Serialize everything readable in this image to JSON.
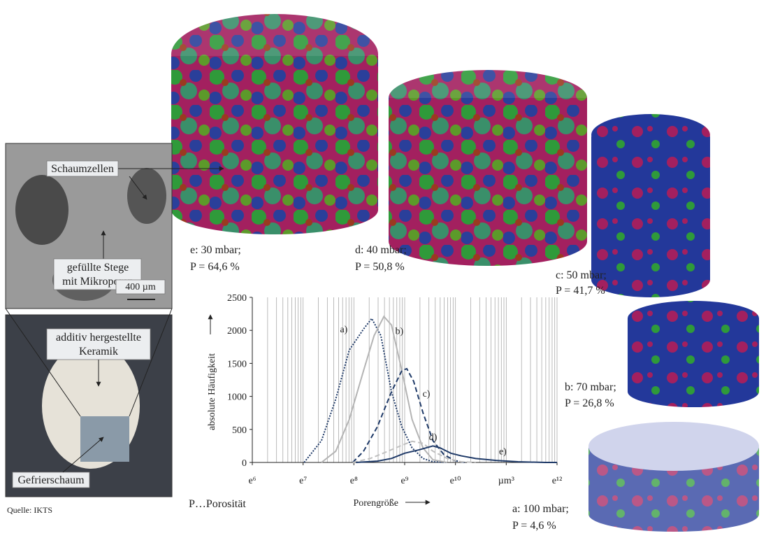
{
  "photo": {
    "callouts": [
      "Schaumzellen",
      "gefüllte Stege",
      "mit Mikroporen",
      "400 µm",
      "additiv hergestellte",
      "Keramik",
      "Gefrierschaum"
    ],
    "source": "Quelle: IKTS"
  },
  "samples": [
    {
      "label": "e: 30 mbar;",
      "porosity": "P = 64,6 %"
    },
    {
      "label": "d: 40 mbar;",
      "porosity": "P = 50,8 %"
    },
    {
      "label": "c: 50 mbar;",
      "porosity": "P = 41,7 %"
    },
    {
      "label": "b: 70 mbar;",
      "porosity": "P = 26,8 %"
    },
    {
      "label": "a: 100 mbar;",
      "porosity": "P = 4,6 %"
    }
  ],
  "note": "P…Porosität",
  "chart_data": {
    "type": "line",
    "xlabel": "Porengröße",
    "ylabel": "absolute Häufigkeit",
    "xscale": "log",
    "xlim": [
      1000000,
      1000000000000
    ],
    "xticks": [
      {
        "value": 1000000,
        "label": "e⁶"
      },
      {
        "value": 10000000,
        "label": "e⁷"
      },
      {
        "value": 100000000,
        "label": "e⁸"
      },
      {
        "value": 1000000000,
        "label": "e⁹"
      },
      {
        "value": 10000000000,
        "label": "e¹⁰"
      },
      {
        "value": 100000000000,
        "label": "µm³"
      },
      {
        "value": 1000000000000,
        "label": "e¹²"
      }
    ],
    "ylim": [
      0,
      2500
    ],
    "yticks": [
      0,
      500,
      1000,
      1500,
      2000,
      2500
    ],
    "grid": true,
    "series": [
      {
        "name": "a)",
        "color": "#1f3a68",
        "style": "dotted",
        "x": [
          10500000,
          23000000,
          44000000,
          81000000,
          155000000,
          225000000,
          340000000,
          550000000,
          880000000,
          1400000000,
          2300000000,
          3600000000,
          6900000000
        ],
        "values": [
          0,
          330,
          960,
          1700,
          2020,
          2180,
          1920,
          1070,
          540,
          220,
          60,
          10,
          0
        ]
      },
      {
        "name": "b)",
        "color": "#b4b4b4",
        "style": "solid",
        "x": [
          23000000,
          44000000,
          81000000,
          155000000,
          250000000,
          390000000,
          550000000,
          880000000,
          1400000000,
          2300000000,
          3600000000,
          6900000000
        ],
        "values": [
          0,
          170,
          650,
          1390,
          1920,
          2210,
          2080,
          1390,
          650,
          220,
          40,
          0
        ]
      },
      {
        "name": "c)",
        "color": "#1f3a68",
        "style": "dashed",
        "x": [
          95000000,
          155000000,
          290000000,
          550000000,
          880000000,
          1100000000,
          1500000000,
          2300000000,
          3600000000,
          5900000000,
          9500000000,
          15000000000
        ],
        "values": [
          0,
          170,
          540,
          1070,
          1390,
          1420,
          1230,
          750,
          330,
          120,
          30,
          0
        ]
      },
      {
        "name": "d)",
        "color": "#c0c0c0",
        "style": "dashed",
        "x": [
          95000000,
          210000000,
          470000000,
          880000000,
          1400000000,
          2300000000,
          3600000000,
          6900000000,
          13000000000,
          25000000000
        ],
        "values": [
          0,
          60,
          170,
          260,
          320,
          290,
          170,
          60,
          10,
          0
        ]
      },
      {
        "name": "e)",
        "color": "#1f3a68",
        "style": "solid",
        "x": [
          110000000,
          290000000,
          550000000,
          1000000000,
          1900000000,
          3600000000,
          5000000000,
          8100000000,
          13000000000,
          25000000000,
          63000000000,
          170000000000,
          590000000000,
          1000000000000
        ],
        "values": [
          0,
          20,
          60,
          140,
          190,
          250,
          220,
          140,
          100,
          60,
          30,
          10,
          0,
          0
        ]
      }
    ]
  }
}
